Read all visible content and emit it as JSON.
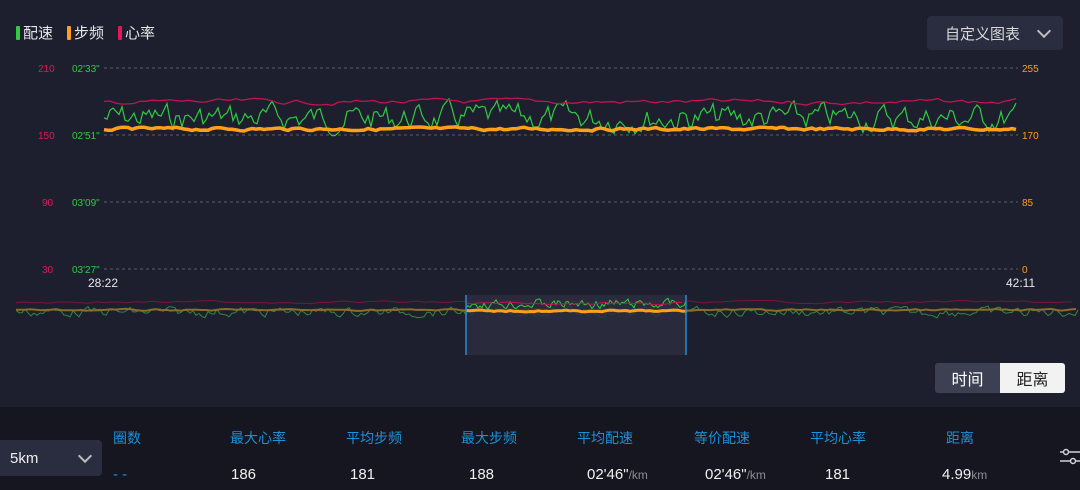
{
  "legend": [
    {
      "label": "配速",
      "color": "#2ecc40"
    },
    {
      "label": "步频",
      "color": "#ff9f1a"
    },
    {
      "label": "心率",
      "color": "#e3175a"
    }
  ],
  "custom_chart_button": "自定义图表",
  "axes": {
    "left_hr_ticks": [
      "210",
      "150",
      "90",
      "30"
    ],
    "left_pace_ticks": [
      "02'33\"",
      "02'51\"",
      "03'09\"",
      "03'27\""
    ],
    "right_cadence_ticks": [
      "255",
      "170",
      "85",
      "0"
    ],
    "x_start": "28:22",
    "x_end": "42:11",
    "colors": {
      "hr": "#e3175a",
      "pace": "#2ecc40",
      "cadence": "#ff9f1a"
    }
  },
  "toggle": {
    "time": "时间",
    "distance": "距离",
    "active": "time"
  },
  "distance_select": "5km",
  "table": {
    "headers": [
      "圈数",
      "最大心率",
      "平均步频",
      "最大步频",
      "平均配速",
      "等价配速",
      "平均心率",
      "距离"
    ],
    "row": {
      "lap": "- -",
      "max_hr": "186",
      "avg_cadence": "181",
      "max_cadence": "188",
      "avg_pace": "02'46\"",
      "avg_pace_unit": "/km",
      "equiv_pace": "02'46\"",
      "equiv_pace_unit": "/km",
      "avg_hr": "181",
      "distance": "4.99",
      "distance_unit": "km"
    }
  }
}
